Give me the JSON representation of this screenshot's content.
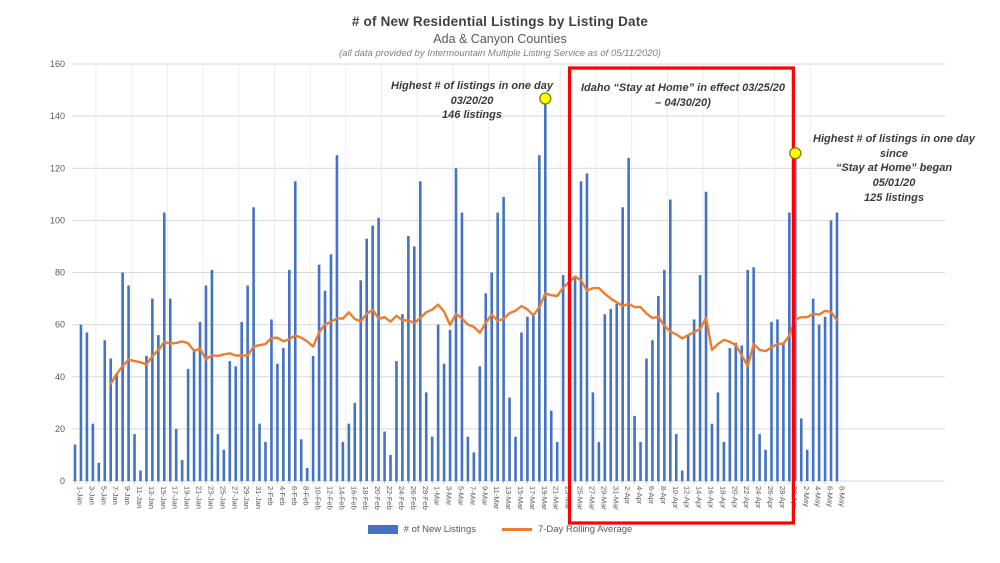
{
  "header": {
    "title": "# of New Residential Listings by Listing Date",
    "subtitle": "Ada & Canyon Counties",
    "source_note": "(all data provided by Intermountain Multiple Listing Service as of 05/11/2020)"
  },
  "annotations": {
    "peak_march": {
      "line1": "Highest # of listings in one day",
      "line2": "03/20/20",
      "line3": "146 listings"
    },
    "stay_at_home": {
      "line1": "Idaho “Stay at Home” in effect 03/25/20",
      "line2": "– 04/30/20)"
    },
    "peak_may": {
      "line1": "Highest # of listings in one day since",
      "line2": "“Stay at Home” began",
      "line3": "05/01/20",
      "line4": "125 listings"
    }
  },
  "legend": [
    {
      "label": "# of New Listings",
      "type": "bar",
      "color": "#4472C4"
    },
    {
      "label": "7-Day Rolling Average",
      "type": "line",
      "color": "#ED7D31"
    }
  ],
  "colors": {
    "bar": "#4472C4",
    "line": "#ED7D31",
    "highlight_box": "#FF0000",
    "marker_fill": "#FFFF00",
    "marker_stroke": "#808000",
    "gridline": "#D9D9D9",
    "axis_text": "#595959"
  },
  "chart_data": {
    "type": "bar",
    "title": "# of New Residential Listings by Listing Date",
    "xlabel": "",
    "ylabel": "",
    "ylim": [
      0,
      160
    ],
    "y_ticks": [
      0,
      20,
      40,
      60,
      80,
      100,
      120,
      140,
      160
    ],
    "x_label_every": 2,
    "grid": "horizontal",
    "legend_position": "bottom",
    "x": [
      "1-Jan",
      "2-Jan",
      "3-Jan",
      "4-Jan",
      "5-Jan",
      "6-Jan",
      "7-Jan",
      "8-Jan",
      "9-Jan",
      "10-Jan",
      "11-Jan",
      "12-Jan",
      "13-Jan",
      "14-Jan",
      "15-Jan",
      "16-Jan",
      "17-Jan",
      "18-Jan",
      "19-Jan",
      "20-Jan",
      "21-Jan",
      "22-Jan",
      "23-Jan",
      "24-Jan",
      "25-Jan",
      "26-Jan",
      "27-Jan",
      "28-Jan",
      "29-Jan",
      "30-Jan",
      "31-Jan",
      "1-Feb",
      "2-Feb",
      "3-Feb",
      "4-Feb",
      "5-Feb",
      "6-Feb",
      "7-Feb",
      "8-Feb",
      "9-Feb",
      "10-Feb",
      "11-Feb",
      "12-Feb",
      "13-Feb",
      "14-Feb",
      "15-Feb",
      "16-Feb",
      "17-Feb",
      "18-Feb",
      "19-Feb",
      "20-Feb",
      "21-Feb",
      "22-Feb",
      "23-Feb",
      "24-Feb",
      "25-Feb",
      "26-Feb",
      "27-Feb",
      "28-Feb",
      "29-Feb",
      "1-Mar",
      "2-Mar",
      "3-Mar",
      "4-Mar",
      "5-Mar",
      "6-Mar",
      "7-Mar",
      "8-Mar",
      "9-Mar",
      "10-Mar",
      "11-Mar",
      "12-Mar",
      "13-Mar",
      "14-Mar",
      "15-Mar",
      "16-Mar",
      "17-Mar",
      "18-Mar",
      "19-Mar",
      "20-Mar",
      "21-Mar",
      "22-Mar",
      "23-Mar",
      "24-Mar",
      "25-Mar",
      "26-Mar",
      "27-Mar",
      "28-Mar",
      "29-Mar",
      "30-Mar",
      "31-Mar",
      "1-Apr",
      "2-Apr",
      "3-Apr",
      "4-Apr",
      "5-Apr",
      "6-Apr",
      "7-Apr",
      "8-Apr",
      "9-Apr",
      "10-Apr",
      "11-Apr",
      "12-Apr",
      "13-Apr",
      "14-Apr",
      "15-Apr",
      "16-Apr",
      "17-Apr",
      "18-Apr",
      "19-Apr",
      "20-Apr",
      "21-Apr",
      "22-Apr",
      "23-Apr",
      "24-Apr",
      "25-Apr",
      "26-Apr",
      "27-Apr",
      "28-Apr",
      "29-Apr",
      "30-Apr",
      "1-May",
      "2-May",
      "3-May",
      "4-May",
      "5-May",
      "6-May",
      "7-May",
      "8-May"
    ],
    "series": [
      {
        "name": "# of New Listings",
        "type": "bar",
        "color": "#4472C4",
        "values": [
          14,
          60,
          57,
          22,
          7,
          54,
          47,
          41,
          80,
          75,
          18,
          4,
          48,
          70,
          56,
          103,
          70,
          20,
          8,
          43,
          50,
          61,
          75,
          81,
          18,
          12,
          46,
          44,
          61,
          75,
          105,
          22,
          15,
          62,
          45,
          51,
          81,
          115,
          16,
          5,
          48,
          83,
          73,
          87,
          125,
          15,
          22,
          30,
          77,
          93,
          98,
          101,
          19,
          10,
          46,
          64,
          94,
          90,
          115,
          34,
          17,
          60,
          45,
          58,
          120,
          103,
          17,
          11,
          44,
          72,
          80,
          103,
          109,
          32,
          17,
          57,
          63,
          64,
          125,
          146,
          27,
          15,
          79,
          79,
          78,
          115,
          118,
          34,
          15,
          64,
          66,
          68,
          105,
          124,
          25,
          15,
          47,
          54,
          71,
          81,
          108,
          18,
          4,
          56,
          62,
          79,
          111,
          22,
          34,
          15,
          51,
          53,
          52,
          81,
          82,
          18,
          12,
          61,
          62,
          53,
          103,
          125,
          24,
          12,
          70,
          60,
          63,
          100,
          103
        ]
      },
      {
        "name": "7-Day Rolling Average",
        "type": "line",
        "color": "#ED7D31",
        "derived": "trailing 7-day mean of # of New Listings",
        "window": 7
      }
    ],
    "highlight_box": {
      "from": "25-Mar",
      "to": "30-Apr",
      "label": "Idaho Stay at Home order",
      "color": "#FF0000"
    },
    "markers": [
      {
        "date": "20-Mar",
        "value": 146,
        "note": "Highest # of listings in one day"
      },
      {
        "date": "1-May",
        "value": 125,
        "note": "Highest # of listings in one day since Stay at Home began"
      }
    ]
  }
}
